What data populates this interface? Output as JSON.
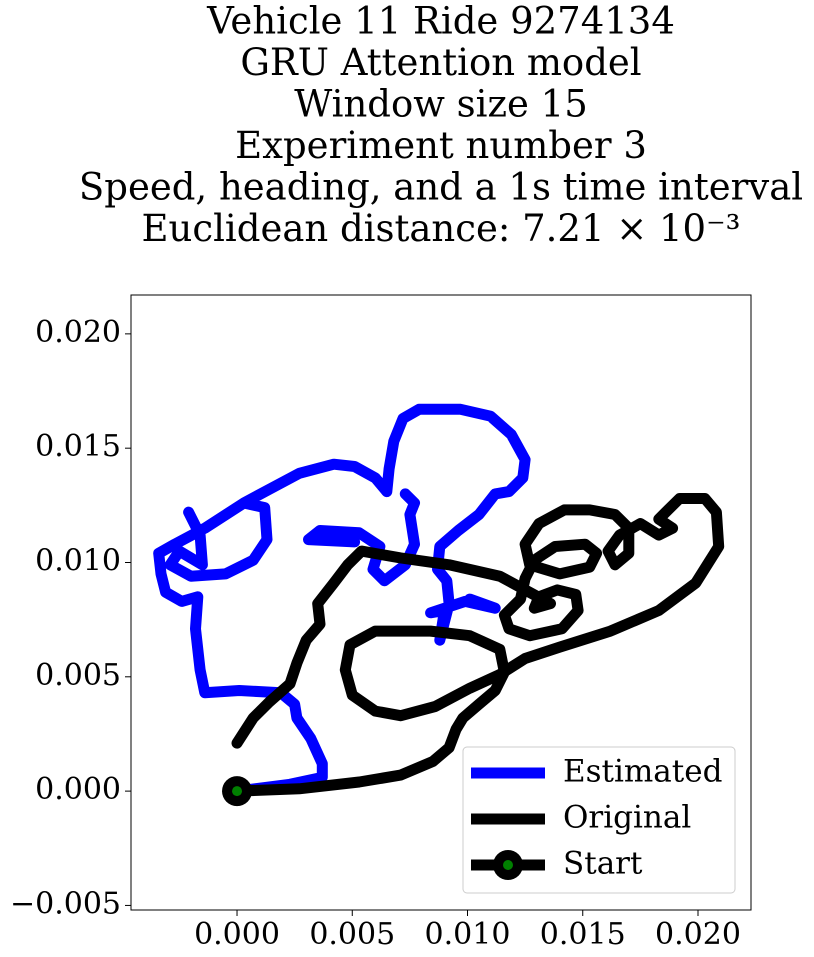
{
  "chart_data": {
    "type": "line",
    "title": [
      "Vehicle 11 Ride 9274134",
      "GRU Attention model",
      "Window size 15",
      "Experiment number 3",
      "Speed, heading, and a 1s time interval",
      "Euclidean distance: 7.21 × 10⁻³"
    ],
    "xlim": [
      -0.0046,
      0.0223
    ],
    "ylim": [
      -0.0052,
      0.0217
    ],
    "xticks": [
      {
        "value": 0,
        "label": "0.000"
      },
      0.005,
      {
        "value": 0.01,
        "label": "0.010"
      },
      0.015,
      {
        "value": 0.02,
        "label": "0.020"
      }
    ],
    "yticks": [
      {
        "value": -0.005,
        "label": "−0.005"
      },
      {
        "value": 0,
        "label": "0.000"
      },
      0.005,
      {
        "value": 0.01,
        "label": "0.010"
      },
      0.015,
      {
        "value": 0.02,
        "label": "0.020"
      }
    ],
    "legend": "lower right",
    "series": [
      {
        "name": "Estimated",
        "color": "#0000ff",
        "x": [
          0,
          0.0023,
          0.0037,
          0.0037,
          0.0032,
          0.0026,
          0.0025,
          0.0019,
          0.0001,
          -0.0014,
          -0.0016,
          -0.0018,
          -0.0017,
          -0.0024,
          -0.0031,
          -0.0033,
          -0.0034,
          -0.0027,
          -0.0014,
          0.0003,
          0.0012,
          0.0013,
          0.0007,
          -0.0005,
          -0.002,
          -0.0029,
          -0.0025,
          -0.0015,
          -0.0016,
          -0.0021,
          null,
          0.0003,
          0.0014,
          0.0027,
          0.0042,
          0.0051,
          0.006,
          0.0065,
          0.0066,
          0.0068,
          0.0072,
          0.0079,
          0.0097,
          0.011,
          0.0119,
          0.0125,
          0.0124,
          0.0118,
          0.0112,
          0.0105,
          0.0096,
          0.0088,
          0.0087,
          0.0091,
          0.0092,
          0.0088,
          0.009,
          0.0084,
          0.0099,
          0.0112,
          0.0101,
          null,
          0.0073,
          0.0077,
          0.0075,
          0.0077,
          0.0073,
          0.0064,
          0.0059,
          0.0062,
          0.0053,
          0.0036,
          0.0031,
          0.0051
        ],
        "y": [
          0,
          0.0003,
          0.0006,
          0.0012,
          0.0023,
          0.0032,
          0.0038,
          0.0043,
          0.0044,
          0.0043,
          0.0053,
          0.0071,
          0.0085,
          0.0083,
          0.0087,
          0.0095,
          0.0104,
          0.0108,
          0.0115,
          0.0126,
          0.0124,
          0.011,
          0.0101,
          0.0095,
          0.0094,
          0.0099,
          0.0105,
          0.0099,
          0.0112,
          0.0122,
          null,
          0.0126,
          0.0132,
          0.0139,
          0.0143,
          0.0142,
          0.0137,
          0.0131,
          0.0141,
          0.0153,
          0.0163,
          0.0167,
          0.0167,
          0.0164,
          0.0156,
          0.0145,
          0.0137,
          0.0131,
          0.013,
          0.0121,
          0.0114,
          0.0107,
          0.0097,
          0.0092,
          0.0082,
          0.0066,
          0.0079,
          0.0078,
          0.0083,
          0.008,
          0.0084,
          null,
          0.013,
          0.0126,
          0.0121,
          0.0108,
          0.0099,
          0.0092,
          0.0097,
          0.0107,
          0.0113,
          0.0114,
          0.011,
          0.0109
        ]
      },
      {
        "name": "Original",
        "color": "#000000",
        "x": [
          0,
          0.0027,
          0.0053,
          0.0071,
          0.0085,
          0.0092,
          0.0095,
          0.0098,
          0.0105,
          0.0112,
          0.0116,
          0.0114,
          0.0101,
          0.0084,
          0.006,
          0.0049,
          0.0047,
          0.005,
          0.006,
          0.0071,
          0.0086,
          0.0101,
          0.0114,
          0.0125,
          0.014,
          0.0162,
          0.0183,
          0.0199,
          0.0209,
          0.0208,
          0.0203,
          0.0192,
          0.0187,
          0.0183,
          0.0189,
          0.0183,
          0.0175,
          0.0166,
          0.0161,
          0.0164,
          0.017,
          0.017,
          0.0164,
          0.0153,
          0.0142,
          0.0131,
          0.0125,
          0.0127,
          0.014,
          0.0153,
          0.0156,
          0.0151,
          0.0138,
          0.0129,
          0.0125,
          0.0123,
          0.0116,
          0.0118,
          0.0127,
          0.0141,
          0.0148,
          0.0147,
          0.0139,
          0.0131,
          0.0129,
          0.0136,
          0.0125,
          0.0114,
          0.0092,
          0.0071,
          0.0054,
          0.0048,
          0.0042,
          0.0035,
          0.0036,
          0.003,
          0.0026,
          0.0023,
          0.0014,
          0.0007,
          0
        ],
        "y": [
          0,
          0.0001,
          0.0004,
          0.0007,
          0.0013,
          0.0019,
          0.0027,
          0.0032,
          0.0038,
          0.0044,
          0.0052,
          0.0062,
          0.0068,
          0.007,
          0.007,
          0.0064,
          0.0053,
          0.0042,
          0.0035,
          0.0033,
          0.0037,
          0.0045,
          0.0051,
          0.0058,
          0.0063,
          0.007,
          0.0079,
          0.0091,
          0.0107,
          0.0122,
          0.0128,
          0.0128,
          0.0123,
          0.0119,
          0.0115,
          0.0112,
          0.0117,
          0.0112,
          0.0105,
          0.0099,
          0.0104,
          0.0115,
          0.0121,
          0.0123,
          0.0123,
          0.0117,
          0.0108,
          0.0099,
          0.0095,
          0.0098,
          0.0104,
          0.0108,
          0.0107,
          0.0101,
          0.0093,
          0.0084,
          0.0077,
          0.0071,
          0.0068,
          0.0071,
          0.0079,
          0.0086,
          0.0088,
          0.0085,
          0.008,
          0.0082,
          0.0088,
          0.0094,
          0.0099,
          0.0102,
          0.0105,
          0.0099,
          0.0091,
          0.0082,
          0.0073,
          0.0066,
          0.0056,
          0.0047,
          0.0039,
          0.0032,
          0.0021
        ]
      },
      {
        "name": "Start",
        "color": "#000000",
        "marker_color": "#008000",
        "x": [
          0
        ],
        "y": [
          0
        ]
      }
    ]
  }
}
